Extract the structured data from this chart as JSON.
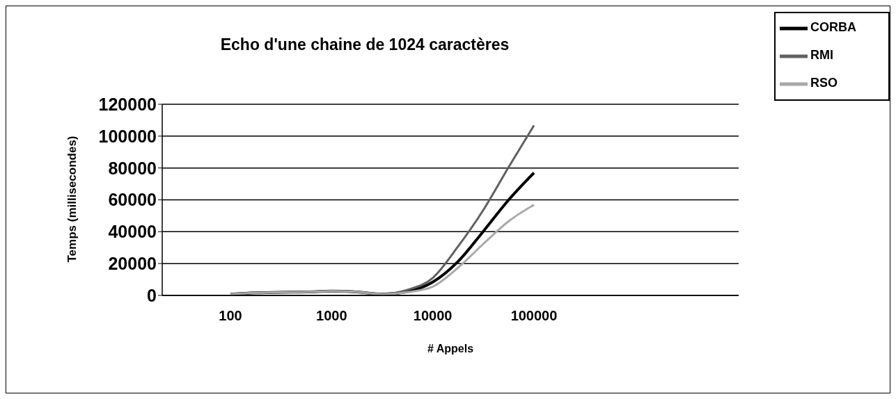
{
  "chart_data": {
    "type": "line",
    "title": "Echo d'une chaine de 1024 caractères",
    "xlabel": "# Appels",
    "ylabel": "Temps (millisecondes)",
    "categories": [
      "100",
      null,
      null,
      null,
      "1000",
      null,
      null,
      null,
      "10000",
      null,
      null,
      null,
      "100000"
    ],
    "series": [
      {
        "name": "CORBA",
        "color": "#000000",
        "values": [
          800,
          1600,
          2000,
          2200,
          2700,
          2200,
          800,
          2400,
          8400,
          21300,
          40300,
          60000,
          77000
        ]
      },
      {
        "name": "RMI",
        "color": "#606060",
        "values": [
          800,
          1600,
          2000,
          2200,
          2700,
          2200,
          800,
          3500,
          11000,
          30800,
          53700,
          80600,
          106700
        ]
      },
      {
        "name": "RSO",
        "color": "#a8a8a8",
        "values": [
          800,
          1600,
          2000,
          2200,
          2700,
          2200,
          800,
          2000,
          5500,
          17400,
          32400,
          46600,
          56900
        ]
      }
    ],
    "ylim": [
      0,
      120000
    ],
    "yticks": [
      0,
      20000,
      40000,
      60000,
      80000,
      100000,
      120000
    ],
    "grid": "y",
    "legend": "top right",
    "marker": "none",
    "line_style": "solid"
  }
}
